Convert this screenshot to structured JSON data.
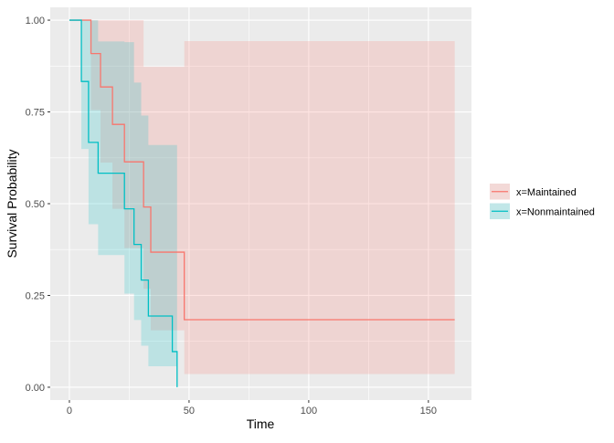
{
  "chart_data": {
    "type": "step",
    "title": "",
    "xlabel": "Time",
    "ylabel": "Survival Probability",
    "xlim": [
      -8,
      168
    ],
    "ylim": [
      -0.035,
      1.035
    ],
    "x_ticks": [
      0,
      50,
      100,
      150
    ],
    "y_ticks": [
      0.0,
      0.25,
      0.5,
      0.75,
      1.0
    ],
    "x_tick_labels": [
      "0",
      "50",
      "100",
      "150"
    ],
    "y_tick_labels": [
      "0.00",
      "0.25",
      "0.50",
      "0.75",
      "1.00"
    ],
    "grid": true,
    "legend_position": "right",
    "series": [
      {
        "name": "x=Maintained",
        "color": "#F8766D",
        "fill": "#F8766D",
        "x": [
          0,
          9,
          13,
          18,
          23,
          28,
          31,
          34,
          45,
          48,
          161
        ],
        "y": [
          1.0,
          0.909,
          0.818,
          0.716,
          0.614,
          0.614,
          0.491,
          0.368,
          0.368,
          0.184,
          0.184
        ],
        "upper": [
          1.0,
          1.0,
          1.0,
          1.0,
          1.0,
          1.0,
          0.873,
          0.873,
          0.873,
          0.943,
          0.943
        ],
        "lower": [
          1.0,
          0.755,
          0.612,
          0.486,
          0.379,
          0.379,
          0.268,
          0.155,
          0.155,
          0.036,
          0.036
        ]
      },
      {
        "name": "x=Nonmaintained",
        "color": "#00BFC4",
        "fill": "#00BFC4",
        "x": [
          0,
          5,
          8,
          12,
          23,
          27,
          30,
          33,
          43,
          45
        ],
        "y": [
          1.0,
          0.833,
          0.667,
          0.583,
          0.486,
          0.389,
          0.292,
          0.194,
          0.097,
          0.0
        ],
        "upper": [
          1.0,
          1.0,
          1.0,
          0.942,
          0.94,
          0.83,
          0.74,
          0.66,
          0.66,
          0.66
        ],
        "lower": [
          1.0,
          0.649,
          0.444,
          0.36,
          0.255,
          0.183,
          0.113,
          0.057,
          0.057,
          0.0
        ]
      }
    ]
  }
}
